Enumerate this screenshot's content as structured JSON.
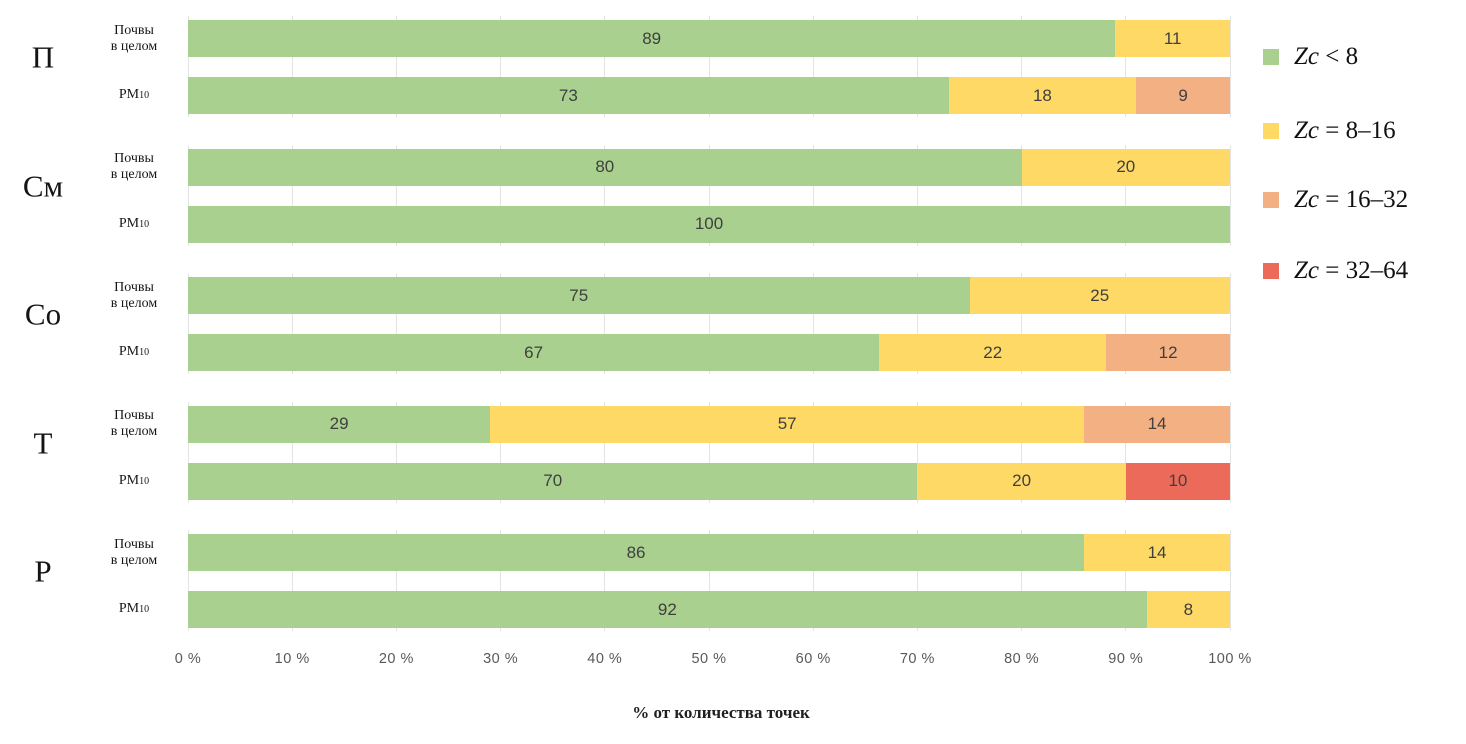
{
  "chart_data": {
    "type": "bar",
    "subtype": "horizontal-stacked-100-percent",
    "title": "",
    "xlabel": "% от количества точек",
    "ylabel": "",
    "x_range": [
      0,
      100
    ],
    "grid": true,
    "legend_position": "right",
    "x_ticks": [
      "0 %",
      "10 %",
      "20 %",
      "30 %",
      "40 %",
      "50 %",
      "60 %",
      "70 %",
      "80 %",
      "90 %",
      "100 %"
    ],
    "legend": [
      {
        "key": "zc_lt_8",
        "var": "Zc",
        "range": "< 8",
        "color": "#a9d08e"
      },
      {
        "key": "zc_8_16",
        "var": "Zc",
        "range": "= 8–16",
        "color": "#fed966"
      },
      {
        "key": "zc_16_32",
        "var": "Zc",
        "range": "= 16–32",
        "color": "#f3b183"
      },
      {
        "key": "zc_32_64",
        "var": "Zc",
        "range": "= 32–64",
        "color": "#ec6a5a"
      }
    ],
    "row_label_soils_lines": [
      "Почвы",
      "в целом"
    ],
    "row_label_pm_main": "PM",
    "row_label_pm_sub": "10",
    "groups": [
      {
        "label": "П",
        "rows": [
          {
            "kind": "soils",
            "segments": [
              {
                "key": "zc_lt_8",
                "value": 89
              },
              {
                "key": "zc_8_16",
                "value": 11
              }
            ]
          },
          {
            "kind": "pm10",
            "segments": [
              {
                "key": "zc_lt_8",
                "value": 73
              },
              {
                "key": "zc_8_16",
                "value": 18
              },
              {
                "key": "zc_16_32",
                "value": 9
              }
            ]
          }
        ]
      },
      {
        "label": "См",
        "rows": [
          {
            "kind": "soils",
            "segments": [
              {
                "key": "zc_lt_8",
                "value": 80
              },
              {
                "key": "zc_8_16",
                "value": 20
              }
            ]
          },
          {
            "kind": "pm10",
            "segments": [
              {
                "key": "zc_lt_8",
                "value": 100
              }
            ]
          }
        ]
      },
      {
        "label": "Со",
        "rows": [
          {
            "kind": "soils",
            "segments": [
              {
                "key": "zc_lt_8",
                "value": 75
              },
              {
                "key": "zc_8_16",
                "value": 25
              }
            ]
          },
          {
            "kind": "pm10",
            "segments": [
              {
                "key": "zc_lt_8",
                "value": 67
              },
              {
                "key": "zc_8_16",
                "value": 22
              },
              {
                "key": "zc_16_32",
                "value": 12
              }
            ]
          }
        ]
      },
      {
        "label": "Т",
        "rows": [
          {
            "kind": "soils",
            "segments": [
              {
                "key": "zc_lt_8",
                "value": 29
              },
              {
                "key": "zc_8_16",
                "value": 57
              },
              {
                "key": "zc_16_32",
                "value": 14
              }
            ]
          },
          {
            "kind": "pm10",
            "segments": [
              {
                "key": "zc_lt_8",
                "value": 70
              },
              {
                "key": "zc_8_16",
                "value": 20
              },
              {
                "key": "zc_32_64",
                "value": 10
              }
            ]
          }
        ]
      },
      {
        "label": "Р",
        "rows": [
          {
            "kind": "soils",
            "segments": [
              {
                "key": "zc_lt_8",
                "value": 86
              },
              {
                "key": "zc_8_16",
                "value": 14
              }
            ]
          },
          {
            "kind": "pm10",
            "segments": [
              {
                "key": "zc_lt_8",
                "value": 92
              },
              {
                "key": "zc_8_16",
                "value": 8
              }
            ]
          }
        ]
      }
    ],
    "colors": {
      "value_label": "#3f3f3f",
      "tick_label": "#595959",
      "gridline": "#e4e4e4",
      "background": "#ffffff"
    }
  }
}
